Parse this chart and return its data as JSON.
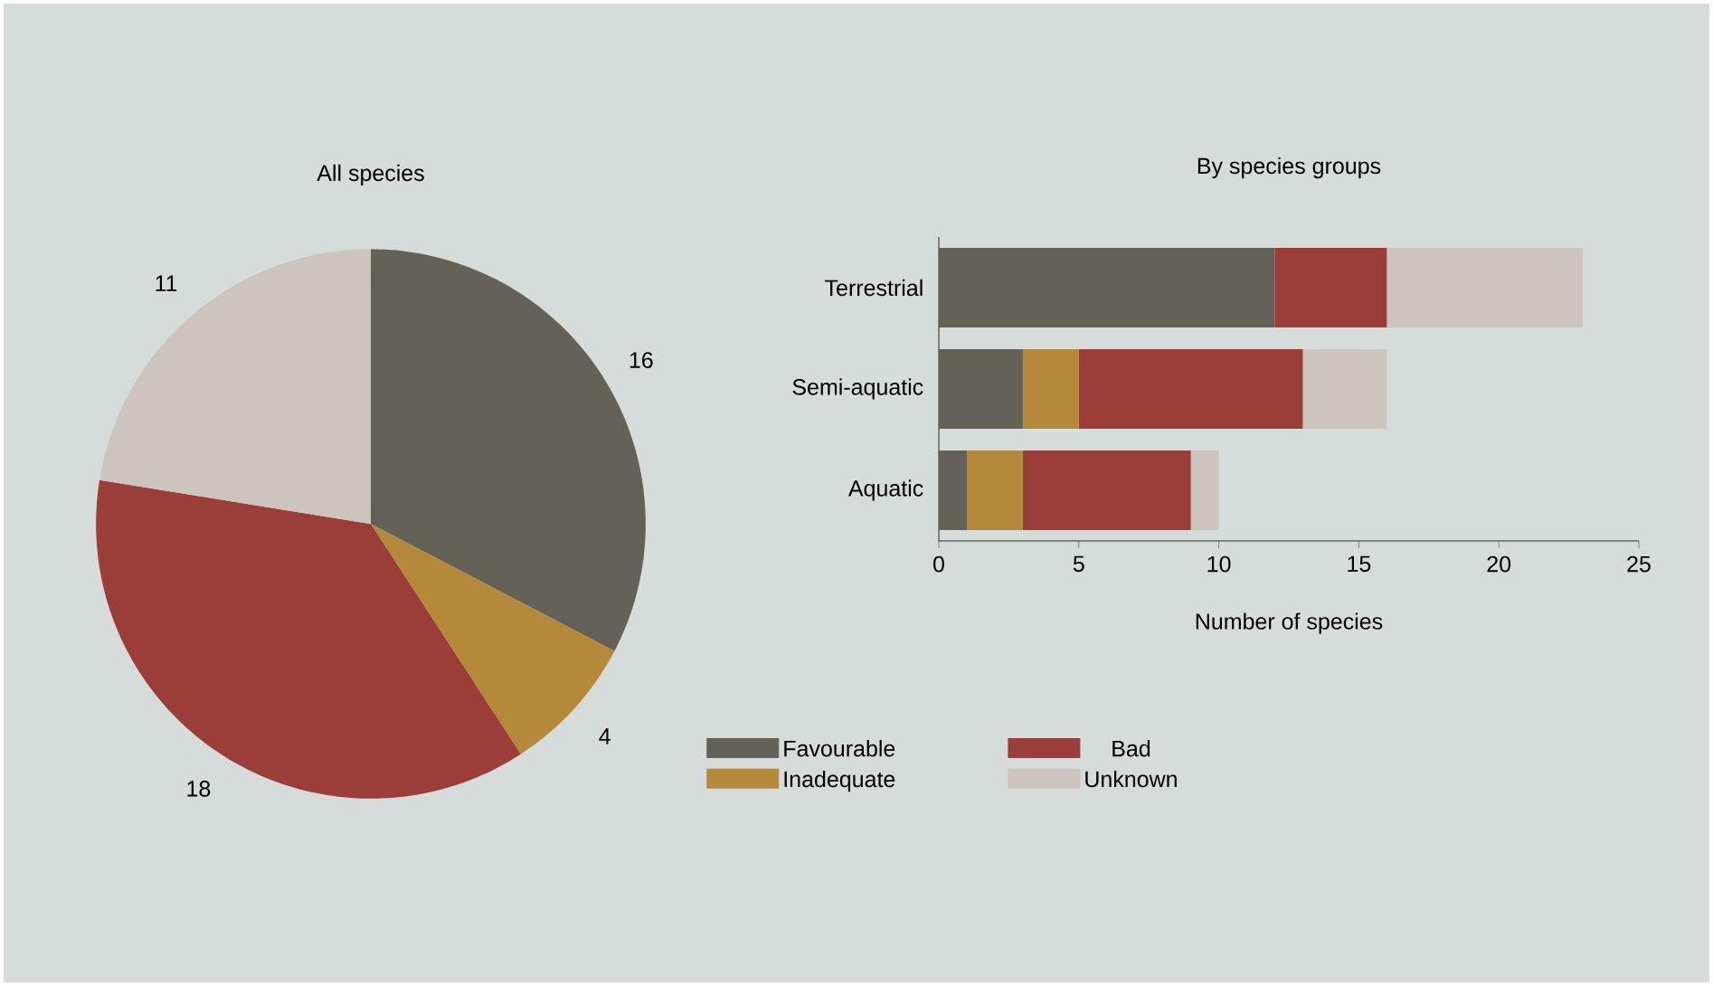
{
  "chart_data": [
    {
      "type": "pie",
      "title": "All species",
      "categories": [
        null,
        null,
        null,
        null
      ],
      "values": [
        16,
        4,
        18,
        11
      ],
      "colors": [
        "#636158",
        "#b5893a",
        "#9b3d38",
        "#ccc4bf"
      ],
      "data_labels": true
    },
    {
      "type": "bar",
      "title": "By species groups",
      "xlabel": "Number of species",
      "categories": [
        "Terrestrial",
        "Semi-aquatic",
        "Aquatic"
      ],
      "orientation": "horizontal",
      "stacked": true,
      "xlim": [
        0,
        25
      ],
      "xticks": [
        0,
        5,
        10,
        15,
        20,
        25
      ],
      "legend": "bottom",
      "series": [
        {
          "name": "Favourable",
          "color": "#636158",
          "values": [
            12,
            3,
            1
          ]
        },
        {
          "name": "Inadequate",
          "color": "#b5893a",
          "values": [
            0,
            2,
            2
          ]
        },
        {
          "name": "Bad",
          "color": "#9b3d38",
          "values": [
            4,
            8,
            6
          ]
        },
        {
          "name": "Unknown",
          "color": "#ccc4bf",
          "values": [
            7,
            3,
            1
          ]
        }
      ]
    }
  ]
}
